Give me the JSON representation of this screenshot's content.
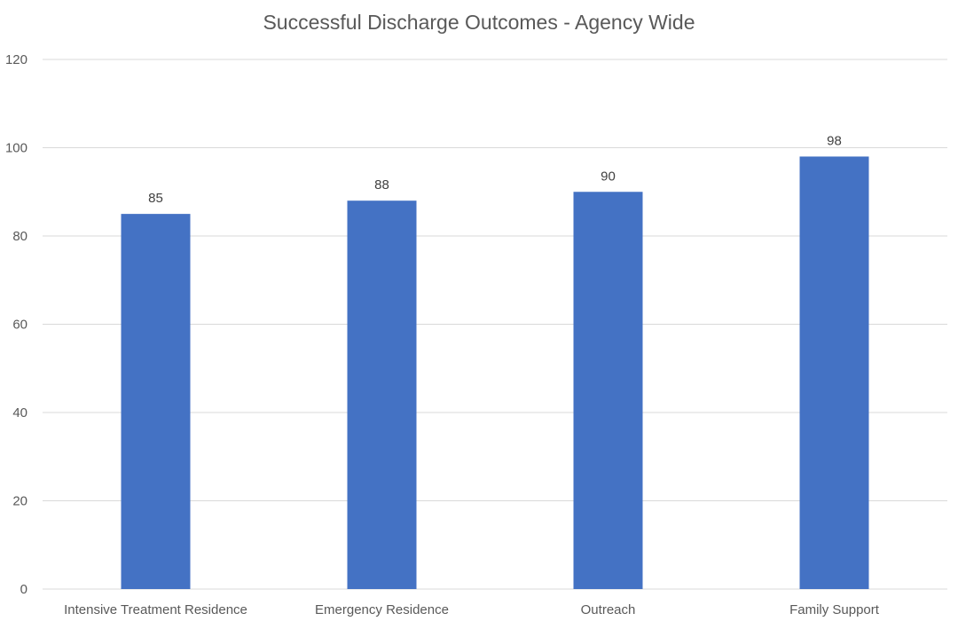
{
  "chart_data": {
    "type": "bar",
    "title": "Successful Discharge Outcomes - Agency Wide",
    "categories": [
      "Intensive Treatment Residence",
      "Emergency Residence",
      "Outreach",
      "Family Support"
    ],
    "values": [
      85,
      88,
      90,
      98
    ],
    "data_labels": [
      "85",
      "88",
      "90",
      "98"
    ],
    "xlabel": "",
    "ylabel": "",
    "ylim": [
      0,
      120
    ],
    "y_ticks": [
      0,
      20,
      40,
      60,
      80,
      100,
      120
    ],
    "y_tick_labels": [
      "0",
      "20",
      "40",
      "60",
      "80",
      "100",
      "120"
    ],
    "grid": true,
    "legend": "none",
    "bar_color": "#4472c4"
  }
}
